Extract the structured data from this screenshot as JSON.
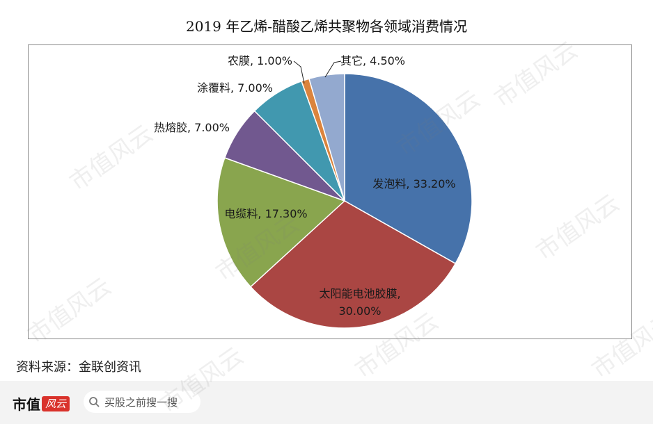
{
  "chart_data": {
    "type": "pie",
    "title": "2019 年乙烯-醋酸乙烯共聚物各领域消费情况",
    "slices": [
      {
        "label": "发泡料",
        "value": 33.2,
        "display": "发泡料, 33.20%",
        "color": "#4672aa"
      },
      {
        "label": "太阳能电池胶膜",
        "value": 30.0,
        "display_lines": [
          "太阳能电池胶膜,",
          "30.00%"
        ],
        "color": "#aa4643"
      },
      {
        "label": "电缆料",
        "value": 17.3,
        "display": "电缆料, 17.30%",
        "color": "#89a54e"
      },
      {
        "label": "热熔胶",
        "value": 7.0,
        "display": "热熔胶, 7.00%",
        "color": "#71588f"
      },
      {
        "label": "涂覆料",
        "value": 7.0,
        "display": "涂覆料, 7.00%",
        "color": "#4198af"
      },
      {
        "label": "农膜",
        "value": 1.0,
        "display": "农膜, 1.00%",
        "color": "#db843d"
      },
      {
        "label": "其它",
        "value": 4.5,
        "display": "其它, 4.50%",
        "color": "#93a9cf"
      }
    ]
  },
  "source": "资料来源：金联创资讯",
  "footer": {
    "brand": "市值",
    "brand_stamp": "风云",
    "search_placeholder": "买股之前搜一搜"
  },
  "watermark_text": "市值风云"
}
